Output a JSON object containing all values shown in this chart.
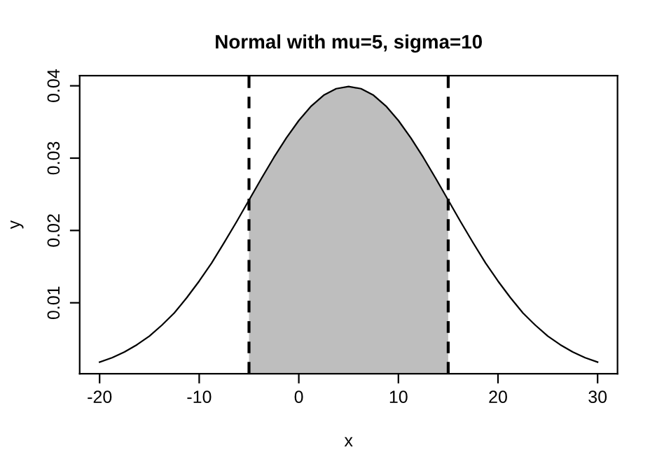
{
  "chart_data": {
    "type": "line",
    "title": "Normal with mu=5, sigma=10",
    "xlabel": "x",
    "ylabel": "y",
    "xlim": [
      -22,
      32
    ],
    "ylim": [
      0.0002,
      0.0414
    ],
    "xticks": [
      -20,
      -10,
      0,
      10,
      20,
      30
    ],
    "yticks": [
      0.01,
      0.02,
      0.03,
      0.04
    ],
    "grid": false,
    "legend": false,
    "marker": "none",
    "series": [
      {
        "type": "area",
        "color": "#bebebe",
        "x": [
          -5,
          -3.75,
          -2.5,
          -1.25,
          0,
          1.25,
          2.5,
          3.75,
          5,
          6.25,
          7.5,
          8.75,
          10,
          11.25,
          12.5,
          13.75,
          15
        ],
        "values": [
          0.0242,
          0.0272,
          0.0301,
          0.0328,
          0.0352,
          0.0372,
          0.0387,
          0.0396,
          0.0399,
          0.0396,
          0.0387,
          0.0372,
          0.0352,
          0.0328,
          0.0301,
          0.0272,
          0.0242
        ]
      },
      {
        "color": "#000000",
        "line_style": "solid",
        "x": [
          -20,
          -18.75,
          -17.5,
          -16.25,
          -15,
          -13.75,
          -12.5,
          -11.25,
          -10,
          -8.75,
          -7.5,
          -6.25,
          -5,
          -3.75,
          -2.5,
          -1.25,
          0,
          1.25,
          2.5,
          3.75,
          5,
          6.25,
          7.5,
          8.75,
          10,
          11.25,
          12.5,
          13.75,
          15,
          16.25,
          17.5,
          18.75,
          20,
          21.25,
          22.5,
          23.75,
          25,
          26.25,
          27.5,
          28.75,
          30
        ],
        "values": [
          0.0018,
          0.0024,
          0.0032,
          0.0042,
          0.0054,
          0.0069,
          0.0086,
          0.0107,
          0.013,
          0.0155,
          0.0183,
          0.0212,
          0.0242,
          0.0272,
          0.0301,
          0.0328,
          0.0352,
          0.0372,
          0.0387,
          0.0396,
          0.0399,
          0.0396,
          0.0387,
          0.0372,
          0.0352,
          0.0328,
          0.0301,
          0.0272,
          0.0242,
          0.0212,
          0.0183,
          0.0155,
          0.013,
          0.0107,
          0.0086,
          0.0069,
          0.0054,
          0.0042,
          0.0032,
          0.0024,
          0.0018
        ]
      }
    ],
    "ref_lines": [
      {
        "axis": "x",
        "value": -5,
        "color": "#000000",
        "line_style": "dashed"
      },
      {
        "axis": "x",
        "value": 15,
        "color": "#000000",
        "line_style": "dashed"
      }
    ]
  }
}
